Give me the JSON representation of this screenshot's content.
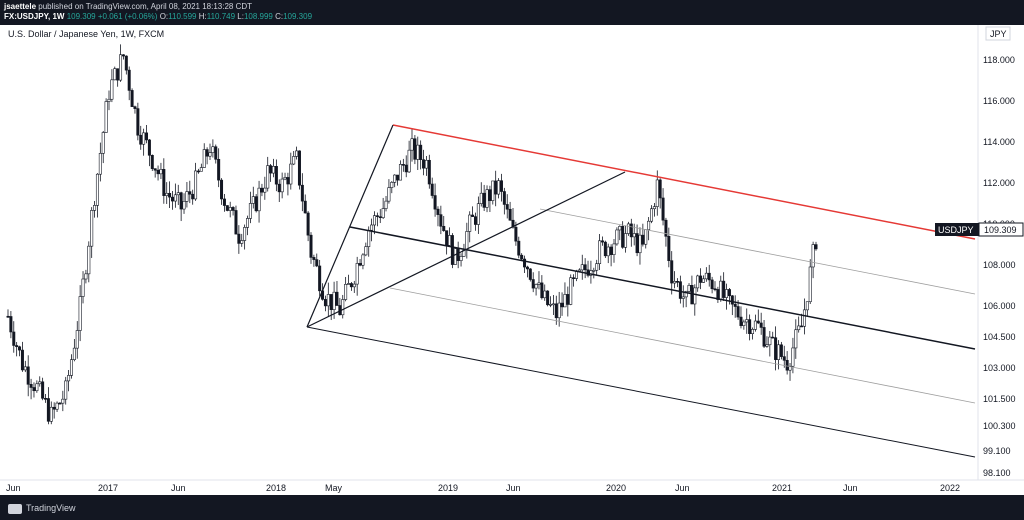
{
  "header": {
    "author": "jsaettele",
    "published": "published on TradingView.com, April 08, 2021 18:13:28 CDT",
    "symbol": "FX:USDJPY, 1W",
    "last": "109.309",
    "change": "+0.061 (+0.06%)",
    "open_label": "O:",
    "open": "110.599",
    "high_label": "H:",
    "high": "110.749",
    "low_label": "L:",
    "low": "108.999",
    "close_label": "C:",
    "close": "109.309"
  },
  "footer": {
    "brand": "TradingView"
  },
  "chart_data": {
    "type": "candlestick",
    "title": "U.S. Dollar / Japanese Yen, 1W, FXCM",
    "currency_label": "JPY",
    "price_tag": {
      "label": "USDJPY",
      "value": "109.309"
    },
    "y_ticks": [
      "118.000",
      "116.000",
      "114.000",
      "112.000",
      "110.000",
      "108.000",
      "106.000",
      "104.500",
      "103.000",
      "101.500",
      "100.300",
      "99.100",
      "98.100"
    ],
    "x_ticks": [
      "Jun",
      "2017",
      "Jun",
      "2018",
      "May",
      "2019",
      "Jun",
      "2020",
      "Jun",
      "2021",
      "Jun",
      "2022"
    ],
    "colors": {
      "red_line": "#e53935",
      "black_line": "#131722",
      "grey_line": "#9e9e9e",
      "candle": "#131722"
    },
    "series": [
      {
        "name": "weekly_closes",
        "x_index": [
          0,
          5,
          10,
          15,
          20,
          25,
          30,
          35,
          40,
          45,
          50,
          55,
          60,
          65,
          70,
          75,
          80,
          85,
          90,
          95,
          100,
          105,
          110,
          115,
          120,
          125,
          130,
          135,
          140,
          145,
          150,
          155,
          160,
          165,
          170,
          175,
          180,
          185,
          190,
          195,
          200,
          205,
          210,
          215,
          220,
          225,
          230,
          235,
          240,
          245,
          250,
          255,
          260,
          265,
          270,
          275,
          280
        ],
        "values": [
          105.5,
          103.2,
          102.0,
          100.6,
          101.8,
          105.9,
          111.5,
          116.5,
          118.2,
          114.8,
          113.2,
          111.5,
          110.8,
          112.0,
          113.8,
          111.2,
          109.5,
          110.8,
          112.5,
          111.9,
          113.1,
          108.6,
          106.5,
          105.8,
          107.6,
          109.8,
          110.8,
          112.4,
          113.6,
          113.0,
          110.2,
          108.2,
          109.9,
          111.2,
          111.8,
          109.5,
          108.0,
          106.4,
          105.6,
          106.8,
          107.8,
          108.7,
          109.2,
          109.5,
          108.8,
          111.9,
          107.6,
          106.2,
          107.4,
          107.1,
          106.0,
          105.4,
          105.0,
          104.0,
          103.3,
          105.0,
          109.3
        ]
      }
    ]
  }
}
